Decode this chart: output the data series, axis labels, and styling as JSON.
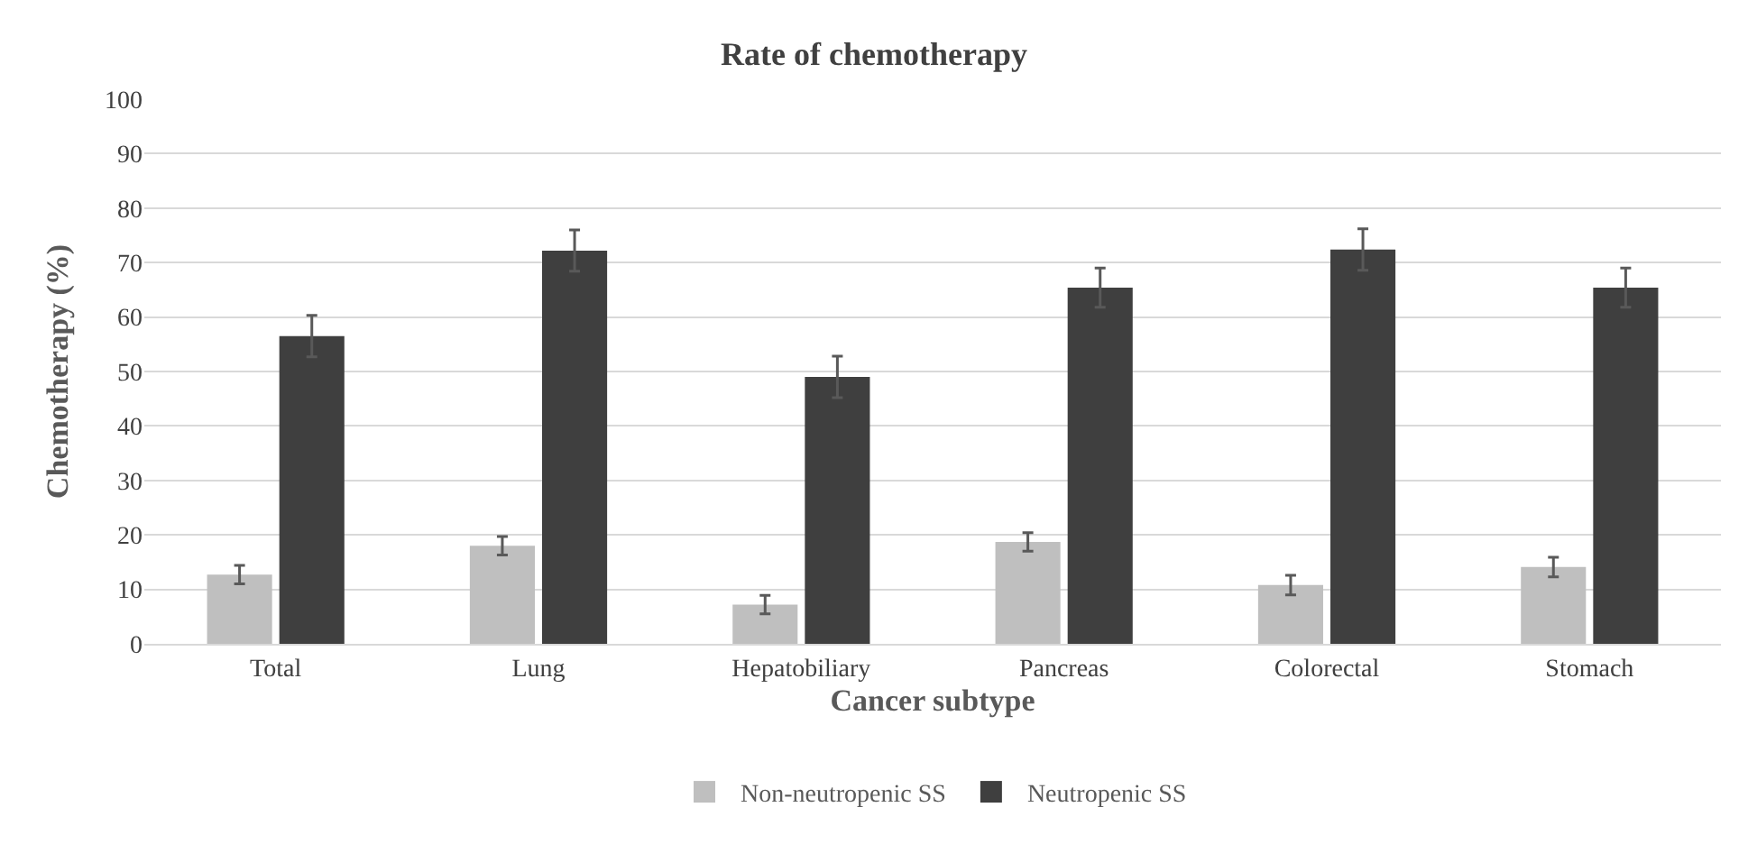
{
  "chart_data": {
    "type": "bar",
    "title": "Rate of chemotherapy",
    "xlabel": "Cancer subtype",
    "ylabel": "Chemotherapy (%)",
    "categories": [
      "Total",
      "Lung",
      "Hepatobiliary",
      "Pancreas",
      "Colorectal",
      "Stomach"
    ],
    "series": [
      {
        "name": "Non-neutropenic SS",
        "color": "#bfbfbf",
        "values": [
          12.7,
          18,
          7.2,
          18.7,
          10.8,
          14.1
        ],
        "errors": [
          1.7,
          1.7,
          1.7,
          1.7,
          1.8,
          1.8
        ]
      },
      {
        "name": "Neutropenic SS",
        "color": "#3f3f3f",
        "values": [
          56.5,
          72.2,
          49,
          65.4,
          72.4,
          65.4
        ],
        "errors": [
          3.8,
          3.8,
          3.8,
          3.6,
          3.8,
          3.6
        ]
      }
    ],
    "ylim": [
      0,
      100
    ],
    "yticks": [
      0,
      10,
      20,
      30,
      40,
      50,
      60,
      70,
      80,
      90,
      100
    ],
    "grid": "y",
    "legend": "bottom"
  }
}
